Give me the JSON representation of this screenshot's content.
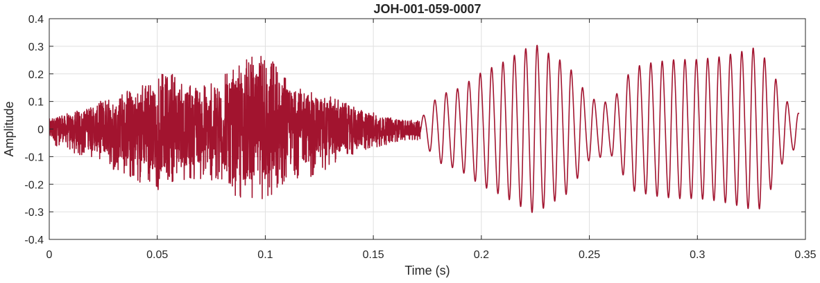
{
  "chart_data": {
    "type": "line",
    "title": "JOH-001-059-0007",
    "xlabel": "Time (s)",
    "ylabel": "Amplitude",
    "xlim": [
      0,
      0.35
    ],
    "ylim": [
      -0.4,
      0.4
    ],
    "x_ticks": [
      0,
      0.05,
      0.1,
      0.15,
      0.2,
      0.25,
      0.3,
      0.35
    ],
    "x_tick_labels": [
      "0",
      "0.05",
      "0.1",
      "0.15",
      "0.2",
      "0.25",
      "0.3",
      "0.35"
    ],
    "y_ticks": [
      0.4,
      0.3,
      0.2,
      0.1,
      0,
      -0.1,
      -0.2,
      -0.3,
      -0.4
    ],
    "y_tick_labels": [
      "0.4",
      "0.3",
      "0.2",
      "0.1",
      "0",
      "-0.1",
      "-0.2",
      "-0.3",
      "-0.4"
    ],
    "grid": true,
    "line_color": "#a2142f",
    "series": [
      {
        "x_start": 0,
        "x_end": 0.347,
        "envelope": [
          {
            "t": 0.0,
            "max": 0.04,
            "min": -0.06
          },
          {
            "t": 0.01,
            "max": 0.06,
            "min": -0.08
          },
          {
            "t": 0.02,
            "max": 0.09,
            "min": -0.12
          },
          {
            "t": 0.03,
            "max": 0.12,
            "min": -0.15
          },
          {
            "t": 0.04,
            "max": 0.15,
            "min": -0.19
          },
          {
            "t": 0.05,
            "max": 0.18,
            "min": -0.22
          },
          {
            "t": 0.055,
            "max": 0.24,
            "min": -0.25
          },
          {
            "t": 0.06,
            "max": 0.17,
            "min": -0.2
          },
          {
            "t": 0.07,
            "max": 0.15,
            "min": -0.18
          },
          {
            "t": 0.08,
            "max": 0.2,
            "min": -0.2
          },
          {
            "t": 0.09,
            "max": 0.25,
            "min": -0.27
          },
          {
            "t": 0.1,
            "max": 0.28,
            "min": -0.26
          },
          {
            "t": 0.11,
            "max": 0.18,
            "min": -0.2
          },
          {
            "t": 0.12,
            "max": 0.14,
            "min": -0.18
          },
          {
            "t": 0.13,
            "max": 0.12,
            "min": -0.14
          },
          {
            "t": 0.14,
            "max": 0.09,
            "min": -0.1
          },
          {
            "t": 0.15,
            "max": 0.06,
            "min": -0.07
          },
          {
            "t": 0.16,
            "max": 0.04,
            "min": -0.05
          },
          {
            "t": 0.17,
            "max": 0.03,
            "min": -0.04
          }
        ],
        "tonal_segment": {
          "t_start": 0.172,
          "frequency_hz": 190,
          "envelope": [
            {
              "t": 0.172,
              "amp": 0.04
            },
            {
              "t": 0.18,
              "amp": 0.13
            },
            {
              "t": 0.19,
              "amp": 0.16
            },
            {
              "t": 0.2,
              "amp": 0.22
            },
            {
              "t": 0.21,
              "amp": 0.26
            },
            {
              "t": 0.22,
              "amp": 0.31
            },
            {
              "t": 0.225,
              "amp": 0.33
            },
            {
              "t": 0.23,
              "amp": 0.3
            },
            {
              "t": 0.24,
              "amp": 0.25
            },
            {
              "t": 0.25,
              "amp": 0.12
            },
            {
              "t": 0.26,
              "amp": 0.1
            },
            {
              "t": 0.27,
              "amp": 0.24
            },
            {
              "t": 0.28,
              "amp": 0.26
            },
            {
              "t": 0.29,
              "amp": 0.27
            },
            {
              "t": 0.3,
              "amp": 0.27
            },
            {
              "t": 0.31,
              "amp": 0.28
            },
            {
              "t": 0.32,
              "amp": 0.3
            },
            {
              "t": 0.328,
              "amp": 0.32
            },
            {
              "t": 0.335,
              "amp": 0.22
            },
            {
              "t": 0.34,
              "amp": 0.12
            },
            {
              "t": 0.347,
              "amp": 0.06
            }
          ]
        }
      }
    ]
  }
}
